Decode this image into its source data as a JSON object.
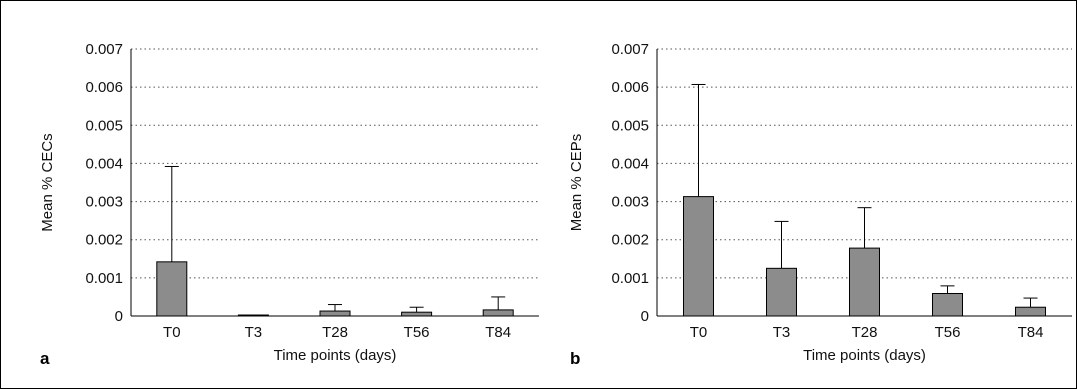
{
  "chart_data": [
    {
      "panel_label": "a",
      "type": "bar",
      "xlabel": "Time points (days)",
      "ylabel": "Mean % CECs",
      "categories": [
        "T0",
        "T3",
        "T28",
        "T56",
        "T84"
      ],
      "values": [
        0.00142,
        1e-05,
        0.00013,
        0.0001,
        0.00016
      ],
      "error_upper": [
        0.00392,
        2e-05,
        0.0003,
        0.00023,
        0.0005
      ],
      "ylim": [
        0,
        0.007
      ],
      "yticks": [
        "0",
        "0.001",
        "0.002",
        "0.003",
        "0.004",
        "0.005",
        "0.006",
        "0.007"
      ],
      "grid": "dotted horizontal",
      "bar_color": "#8c8c8c"
    },
    {
      "panel_label": "b",
      "type": "bar",
      "xlabel": "Time points (days)",
      "ylabel": "Mean % CEPs",
      "categories": [
        "T0",
        "T3",
        "T28",
        "T56",
        "T84"
      ],
      "values": [
        0.00313,
        0.00125,
        0.00178,
        0.00059,
        0.00023
      ],
      "error_upper": [
        0.00607,
        0.00248,
        0.00284,
        0.00079,
        0.00047
      ],
      "ylim": [
        0,
        0.007
      ],
      "yticks": [
        "0",
        "0.001",
        "0.002",
        "0.003",
        "0.004",
        "0.005",
        "0.006",
        "0.007"
      ],
      "grid": "dotted horizontal",
      "bar_color": "#8c8c8c"
    }
  ]
}
